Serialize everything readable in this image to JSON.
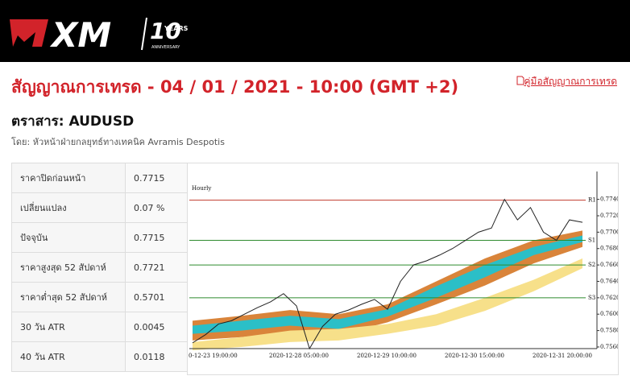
{
  "header": {
    "logo": "XM",
    "badge_top": "10",
    "badge_mid": "YEARS",
    "badge_bottom": "ANNIVERSARY"
  },
  "title": "สัญญาณการเทรด - 04 / 01 / 2021 - 10:00 (GMT +2)",
  "guide_link": "คู่มือสัญญาณการเทรด",
  "instrument": "ตราสาร: AUDUSD",
  "author": "โดย: หัวหน้าฝ่ายกลยุทธ์ทางเทคนิค Avramis Despotis",
  "table": {
    "rows": [
      [
        "ราคาปิดก่อนหน้า",
        "0.7715"
      ],
      [
        "เปลี่ยนแปลง",
        "0.07 %"
      ],
      [
        "ปัจจุบัน",
        "0.7715"
      ],
      [
        "ราคาสูงสุด 52 สัปดาห์",
        "0.7721"
      ],
      [
        "ราคาต่ำสุด 52 สัปดาห์",
        "0.5701"
      ],
      [
        "30 วัน ATR",
        "0.0045"
      ],
      [
        "40 วัน ATR",
        "0.0118"
      ]
    ]
  },
  "chart": {
    "type": "line",
    "timeframe": "Hourly",
    "ylim": [
      0.7558,
      0.7774
    ],
    "yticks": [
      {
        "value": 0.774,
        "label": "0.7740"
      },
      {
        "value": 0.772,
        "label": "0.7720"
      },
      {
        "value": 0.77,
        "label": "0.7700"
      },
      {
        "value": 0.768,
        "label": "0.7680"
      },
      {
        "value": 0.766,
        "label": "0.7660"
      },
      {
        "value": 0.764,
        "label": "0.7640"
      },
      {
        "value": 0.762,
        "label": "0.7620"
      },
      {
        "value": 0.76,
        "label": "0.7600"
      },
      {
        "value": 0.758,
        "label": "0.7580"
      },
      {
        "value": 0.756,
        "label": "0.7560"
      }
    ],
    "xlabels": [
      "0-12-23 19:00:00",
      "2020-12-28 05:00:00",
      "2020-12-29 10:00:00",
      "2020-12-30 15:00:00",
      "2020-12-31 20:00:00"
    ],
    "levels": [
      {
        "name": "R1",
        "value": 0.7739,
        "color": "#c0392b"
      },
      {
        "name": "S1",
        "value": 0.769,
        "color": "#2e8b2e"
      },
      {
        "name": "S2",
        "value": 0.766,
        "color": "#2e8b2e"
      },
      {
        "name": "S3",
        "value": 0.762,
        "color": "#2e8b2e"
      }
    ],
    "price": {
      "color": "#222222",
      "values": [
        0.7565,
        0.7575,
        0.7588,
        0.7592,
        0.76,
        0.7608,
        0.7615,
        0.7625,
        0.761,
        0.7558,
        0.7585,
        0.76,
        0.7605,
        0.7612,
        0.7618,
        0.7606,
        0.764,
        0.766,
        0.7665,
        0.7672,
        0.768,
        0.769,
        0.77,
        0.7705,
        0.774,
        0.7715,
        0.773,
        0.77,
        0.769,
        0.7715,
        0.7712
      ]
    },
    "bands": [
      {
        "color": "#d9843a",
        "upper": [
          0.7592,
          0.7598,
          0.7605,
          0.76,
          0.7612,
          0.764,
          0.7668,
          0.769,
          0.7702
        ],
        "lower": [
          0.7568,
          0.7572,
          0.7578,
          0.7575,
          0.759,
          0.7612,
          0.7635,
          0.7662,
          0.7682
        ]
      },
      {
        "color": "#2bbfc7",
        "upper": [
          0.7586,
          0.7592,
          0.7598,
          0.7594,
          0.7606,
          0.7634,
          0.766,
          0.7682,
          0.7696
        ],
        "lower": [
          0.7576,
          0.758,
          0.7586,
          0.7582,
          0.7597,
          0.762,
          0.7645,
          0.7672,
          0.7688
        ]
      },
      {
        "color": "#f7e08a",
        "upper": [
          0.7566,
          0.7572,
          0.758,
          0.7582,
          0.7588,
          0.76,
          0.762,
          0.7642,
          0.7668
        ],
        "lower": [
          0.7556,
          0.756,
          0.7566,
          0.7568,
          0.7576,
          0.7586,
          0.7604,
          0.7628,
          0.7656
        ]
      }
    ]
  }
}
